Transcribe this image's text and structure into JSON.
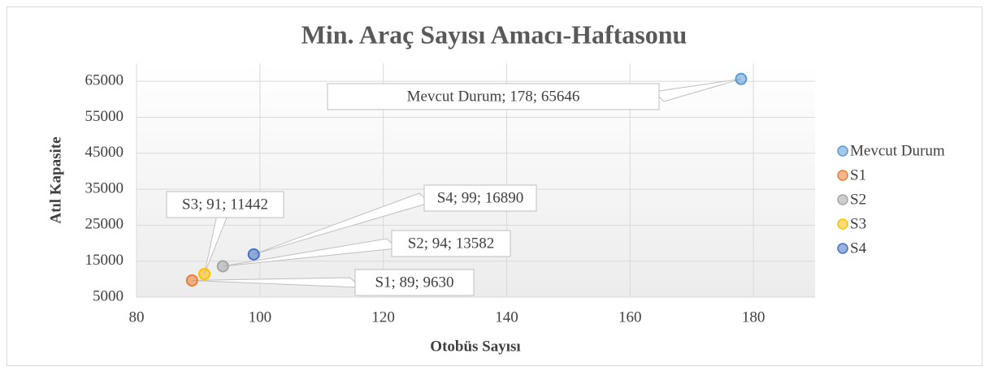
{
  "chart_data": {
    "type": "scatter",
    "title": "Min. Araç Sayısı Amacı-Haftasonu",
    "x_label": "Otobüs Sayısı",
    "y_label": "Atıl Kapasite",
    "xlim": [
      80,
      190
    ],
    "xticks": [
      80,
      100,
      120,
      140,
      160,
      180
    ],
    "ylim": [
      5000,
      70000
    ],
    "yticks": [
      5000,
      15000,
      25000,
      35000,
      45000,
      55000,
      65000
    ],
    "grid": true,
    "legend": "right",
    "series": [
      {
        "name": "Mevcut Durum",
        "color": "#5b9bd5",
        "x": [
          178
        ],
        "values": [
          65646
        ],
        "value_labels": [
          "Mevcut Durum; 178; 65646"
        ]
      },
      {
        "name": "S1",
        "color": "#ed7d31",
        "x": [
          89
        ],
        "values": [
          9630
        ],
        "value_labels": [
          "S1; 89; 9630"
        ]
      },
      {
        "name": "S2",
        "color": "#a5a5a5",
        "x": [
          94
        ],
        "values": [
          13582
        ],
        "value_labels": [
          "S2; 94; 13582"
        ]
      },
      {
        "name": "S3",
        "color": "#ffc000",
        "x": [
          91
        ],
        "values": [
          11442
        ],
        "value_labels": [
          "S3; 91; 11442"
        ]
      },
      {
        "name": "S4",
        "color": "#4472c4",
        "x": [
          99
        ],
        "values": [
          16890
        ],
        "value_labels": [
          "S4; 99; 16890"
        ]
      }
    ]
  }
}
